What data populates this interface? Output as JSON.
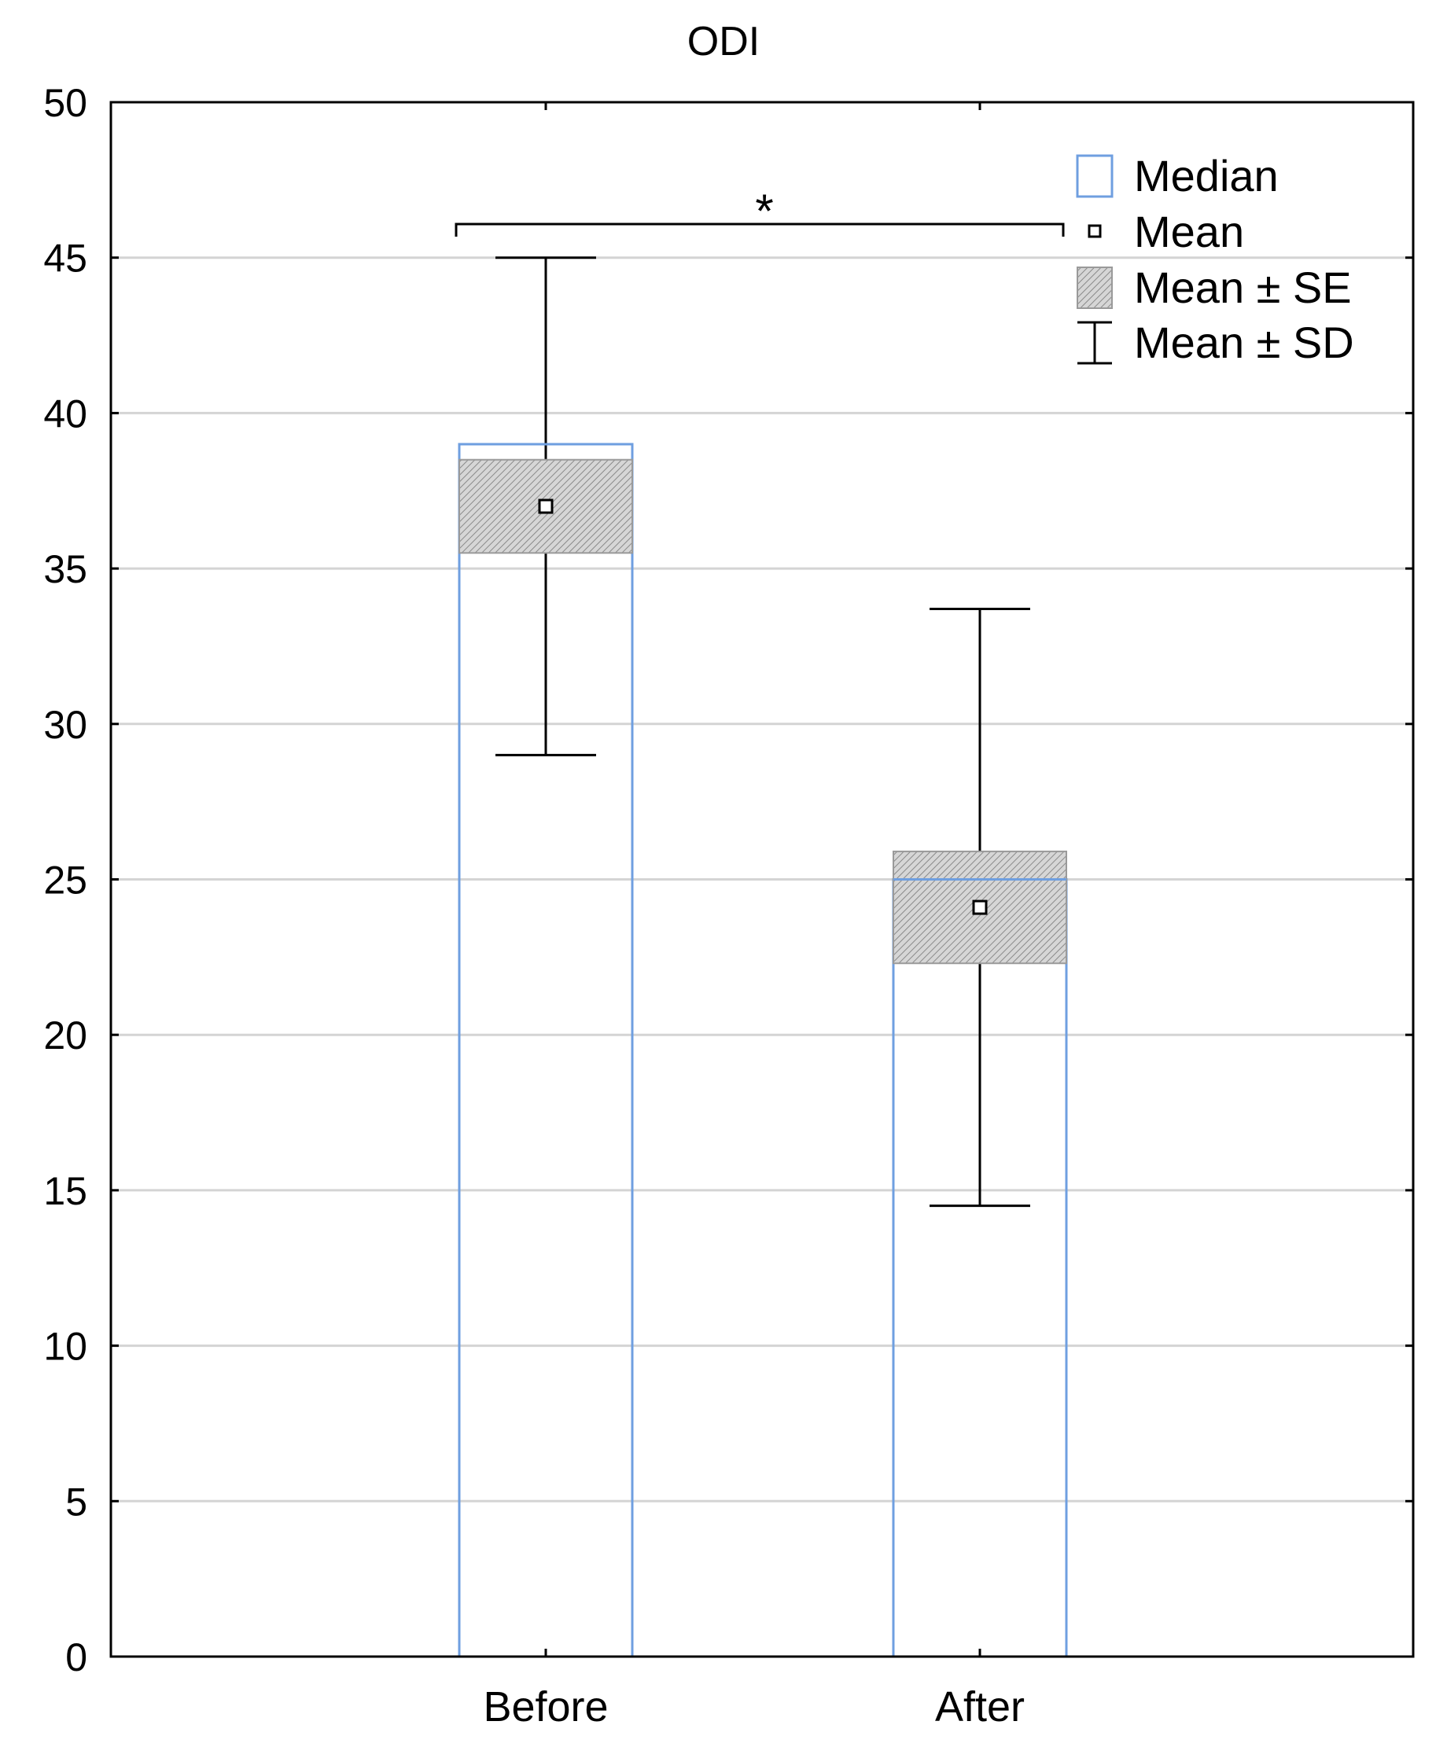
{
  "chart_data": {
    "type": "bar",
    "title": "ODI",
    "xlabel": "",
    "ylabel": "",
    "ylim": [
      0,
      50
    ],
    "yticks": [
      "0",
      "5",
      "10",
      "15",
      "20",
      "25",
      "30",
      "35",
      "40",
      "45",
      "50"
    ],
    "grid": true,
    "categories": [
      "Before",
      "After"
    ],
    "series": [
      {
        "name": "Median",
        "values": [
          39,
          25
        ]
      },
      {
        "name": "Mean",
        "values": [
          37,
          24.1
        ]
      },
      {
        "name": "Mean ± SE",
        "low": [
          35.5,
          22.3
        ],
        "high": [
          38.5,
          25.9
        ]
      },
      {
        "name": "Mean ± SD",
        "low": [
          29,
          14.5
        ],
        "high": [
          45,
          33.7
        ]
      }
    ],
    "legend": {
      "position": "top-right",
      "entries": [
        "Median",
        "Mean",
        "Mean ± SE",
        "Mean ± SD"
      ]
    },
    "annotations": [
      {
        "text": "*",
        "between": [
          "Before",
          "After"
        ],
        "meaning": "significant difference"
      }
    ],
    "colors": {
      "median_box": "#6f9fe0",
      "se_fill": "#c8c8c8",
      "gridline": "#d4d4d4",
      "axis": "#000000"
    }
  }
}
